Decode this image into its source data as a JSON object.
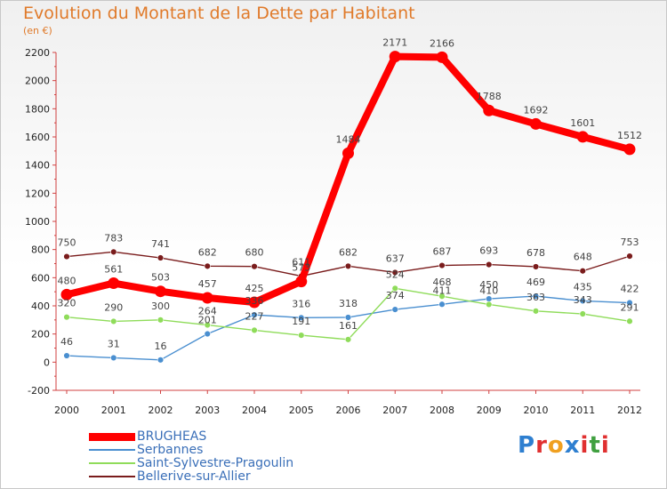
{
  "title": "Evolution du Montant de la Dette par Habitant",
  "unit": "(en €)",
  "logo": "Proxiti",
  "chart_data": {
    "type": "line",
    "categories": [
      "2000",
      "2001",
      "2002",
      "2003",
      "2004",
      "2005",
      "2006",
      "2007",
      "2008",
      "2009",
      "2010",
      "2011",
      "2012"
    ],
    "ylim": [
      -200,
      2200
    ],
    "yticks": [
      -200,
      0,
      200,
      400,
      600,
      800,
      1000,
      1200,
      1400,
      1600,
      1800,
      2000,
      2200
    ],
    "grid": false,
    "legend_position": "bottom-left",
    "series": [
      {
        "name": "BRUGHEAS",
        "color": "#ff0000",
        "values": [
          480,
          561,
          503,
          457,
          425,
          573,
          1484,
          2171,
          2166,
          1788,
          1692,
          1601,
          1512
        ],
        "labels": [
          "480",
          "561",
          "503",
          "457",
          "425",
          "573",
          "1484",
          "2171",
          "2166",
          "1788",
          "1692",
          "1601",
          "1512"
        ]
      },
      {
        "name": "Serbannes",
        "color": "#4a8fd0",
        "values": [
          46,
          31,
          16,
          201,
          336,
          316,
          318,
          374,
          411,
          450,
          469,
          435,
          422
        ],
        "labels": [
          "46",
          "31",
          "16",
          "201",
          "336",
          "316",
          "318",
          "374",
          "411",
          "450",
          "469",
          "435",
          "422"
        ]
      },
      {
        "name": "Saint-Sylvestre-Pragoulin",
        "color": "#8fdc5a",
        "values": [
          320,
          290,
          300,
          264,
          227,
          191,
          161,
          524,
          468,
          410,
          363,
          343,
          291
        ],
        "labels": [
          "320",
          "290",
          "300",
          "264",
          "227",
          "191",
          "161",
          "524",
          "468",
          "410",
          "363",
          "343",
          "291"
        ]
      },
      {
        "name": "Bellerive-sur-Allier",
        "color": "#7a1c1c",
        "values": [
          750,
          783,
          741,
          682,
          680,
          611,
          682,
          637,
          687,
          693,
          678,
          648,
          753
        ],
        "labels": [
          "750",
          "783",
          "741",
          "682",
          "680",
          "611",
          "682",
          "637",
          "687",
          "693",
          "678",
          "648",
          "753"
        ]
      }
    ]
  }
}
